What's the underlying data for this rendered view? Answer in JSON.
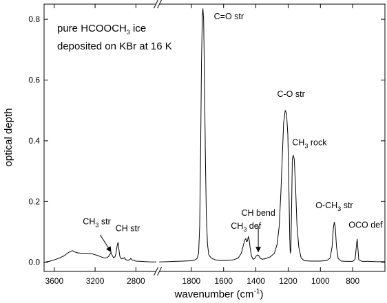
{
  "chart_data": {
    "type": "line",
    "title": "",
    "xlabel": "wavenumber (cm",
    "xlabel_sup": "-1",
    "xlabel_close": ")",
    "ylabel": "optical depth",
    "x_reversed": true,
    "x_axis_break": true,
    "x_segments": [
      {
        "xlim": [
          3700,
          2600
        ],
        "ticks": [
          3600,
          3200,
          2800
        ]
      },
      {
        "xlim": [
          2000,
          600
        ],
        "ticks": [
          1800,
          1600,
          1400,
          1200,
          1000,
          800
        ]
      }
    ],
    "ylim": [
      -0.03,
      0.85
    ],
    "y_ticks": [
      0.0,
      0.2,
      0.4,
      0.6,
      0.8
    ],
    "y_tick_labels": [
      "0.0",
      "0.2",
      "0.4",
      "0.6",
      "0.8"
    ],
    "legend_lines": [
      {
        "parts": [
          {
            "t": "pure HCOOCH"
          },
          {
            "t": "3",
            "sub": true
          },
          {
            "t": " ice"
          }
        ]
      },
      {
        "parts": [
          {
            "t": "deposited on KBr at 16 K"
          }
        ]
      }
    ],
    "series": [
      {
        "points": [
          [
            3700,
            0.0
          ],
          [
            3650,
            0.003
          ],
          [
            3600,
            0.008
          ],
          [
            3550,
            0.014
          ],
          [
            3500,
            0.022
          ],
          [
            3470,
            0.03
          ],
          [
            3440,
            0.036
          ],
          [
            3420,
            0.038
          ],
          [
            3400,
            0.034
          ],
          [
            3370,
            0.031
          ],
          [
            3340,
            0.03
          ],
          [
            3300,
            0.03
          ],
          [
            3260,
            0.029
          ],
          [
            3220,
            0.027
          ],
          [
            3180,
            0.023
          ],
          [
            3150,
            0.019
          ],
          [
            3120,
            0.015
          ],
          [
            3100,
            0.014
          ],
          [
            3080,
            0.016
          ],
          [
            3060,
            0.022
          ],
          [
            3045,
            0.033
          ],
          [
            3035,
            0.025
          ],
          [
            3020,
            0.015
          ],
          [
            3005,
            0.018
          ],
          [
            2995,
            0.03
          ],
          [
            2985,
            0.052
          ],
          [
            2975,
            0.066
          ],
          [
            2968,
            0.045
          ],
          [
            2958,
            0.02
          ],
          [
            2945,
            0.012
          ],
          [
            2925,
            0.012
          ],
          [
            2910,
            0.016
          ],
          [
            2905,
            0.01
          ],
          [
            2880,
            0.006
          ],
          [
            2860,
            0.009
          ],
          [
            2850,
            0.013
          ],
          [
            2840,
            0.008
          ],
          [
            2800,
            0.004
          ],
          [
            2750,
            0.003
          ],
          [
            2700,
            0.002
          ],
          [
            2650,
            0.001
          ],
          [
            2600,
            0.001
          ]
        ],
        "points_b": [
          [
            2000,
            0.001
          ],
          [
            1950,
            0.002
          ],
          [
            1900,
            0.003
          ],
          [
            1850,
            0.004
          ],
          [
            1800,
            0.005
          ],
          [
            1780,
            0.007
          ],
          [
            1765,
            0.012
          ],
          [
            1755,
            0.03
          ],
          [
            1748,
            0.12
          ],
          [
            1742,
            0.38
          ],
          [
            1737,
            0.66
          ],
          [
            1732,
            0.81
          ],
          [
            1728,
            0.835
          ],
          [
            1724,
            0.8
          ],
          [
            1719,
            0.63
          ],
          [
            1713,
            0.36
          ],
          [
            1707,
            0.16
          ],
          [
            1700,
            0.06
          ],
          [
            1692,
            0.025
          ],
          [
            1683,
            0.018
          ],
          [
            1670,
            0.012
          ],
          [
            1650,
            0.008
          ],
          [
            1620,
            0.006
          ],
          [
            1580,
            0.006
          ],
          [
            1540,
            0.008
          ],
          [
            1510,
            0.014
          ],
          [
            1490,
            0.03
          ],
          [
            1478,
            0.055
          ],
          [
            1470,
            0.072
          ],
          [
            1463,
            0.078
          ],
          [
            1457,
            0.068
          ],
          [
            1452,
            0.07
          ],
          [
            1447,
            0.085
          ],
          [
            1442,
            0.078
          ],
          [
            1436,
            0.05
          ],
          [
            1428,
            0.022
          ],
          [
            1418,
            0.01
          ],
          [
            1408,
            0.012
          ],
          [
            1398,
            0.02
          ],
          [
            1390,
            0.024
          ],
          [
            1382,
            0.022
          ],
          [
            1374,
            0.014
          ],
          [
            1362,
            0.01
          ],
          [
            1340,
            0.012
          ],
          [
            1310,
            0.018
          ],
          [
            1285,
            0.03
          ],
          [
            1268,
            0.06
          ],
          [
            1255,
            0.12
          ],
          [
            1245,
            0.23
          ],
          [
            1237,
            0.34
          ],
          [
            1228,
            0.46
          ],
          [
            1218,
            0.5
          ],
          [
            1210,
            0.49
          ],
          [
            1202,
            0.42
          ],
          [
            1196,
            0.26
          ],
          [
            1190,
            0.08
          ],
          [
            1187,
            0.03
          ],
          [
            1183,
            0.04
          ],
          [
            1178,
            0.2
          ],
          [
            1174,
            0.34
          ],
          [
            1168,
            0.352
          ],
          [
            1162,
            0.34
          ],
          [
            1154,
            0.25
          ],
          [
            1145,
            0.12
          ],
          [
            1134,
            0.05
          ],
          [
            1120,
            0.015
          ],
          [
            1100,
            0.005
          ],
          [
            1060,
            0.004
          ],
          [
            1000,
            0.004
          ],
          [
            960,
            0.006
          ],
          [
            940,
            0.014
          ],
          [
            928,
            0.05
          ],
          [
            920,
            0.11
          ],
          [
            914,
            0.132
          ],
          [
            908,
            0.118
          ],
          [
            900,
            0.05
          ],
          [
            890,
            0.012
          ],
          [
            870,
            0.004
          ],
          [
            840,
            0.003
          ],
          [
            800,
            0.003
          ],
          [
            785,
            0.01
          ],
          [
            776,
            0.06
          ],
          [
            772,
            0.076
          ],
          [
            768,
            0.05
          ],
          [
            762,
            0.008
          ],
          [
            740,
            0.003
          ],
          [
            700,
            0.003
          ],
          [
            650,
            0.002
          ],
          [
            600,
            0.002
          ]
        ]
      }
    ],
    "annotations": [
      {
        "parts": [
          {
            "t": "C=O str"
          }
        ],
        "x": 1660,
        "y": 0.8,
        "seg": 1
      },
      {
        "parts": [
          {
            "t": "C-O str"
          }
        ],
        "x": 1268,
        "y": 0.545,
        "seg": 1
      },
      {
        "parts": [
          {
            "t": "CH"
          },
          {
            "t": "3",
            "sub": true
          },
          {
            "t": " rock"
          }
        ],
        "x": 1175,
        "y": 0.385,
        "seg": 1
      },
      {
        "parts": [
          {
            "t": "O-CH"
          },
          {
            "t": "3",
            "sub": true
          },
          {
            "t": " str"
          }
        ],
        "x": 1030,
        "y": 0.178,
        "seg": 1
      },
      {
        "parts": [
          {
            "t": "OCO def"
          }
        ],
        "x": 825,
        "y": 0.114,
        "seg": 1
      },
      {
        "parts": [
          {
            "t": "CH bend"
          }
        ],
        "x": 1490,
        "y": 0.153,
        "seg": 1
      },
      {
        "parts": [
          {
            "t": "CH"
          },
          {
            "t": "3",
            "sub": true
          },
          {
            "t": " def"
          }
        ],
        "x": 1555,
        "y": 0.11,
        "seg": 1
      },
      {
        "parts": [
          {
            "t": "CH"
          },
          {
            "t": "3",
            "sub": true
          },
          {
            "t": " str"
          }
        ],
        "x": 3320,
        "y": 0.125,
        "seg": 0
      },
      {
        "parts": [
          {
            "t": "CH str"
          }
        ],
        "x": 3000,
        "y": 0.102,
        "seg": 0
      }
    ],
    "arrows": [
      {
        "from": [
          3150,
          0.09
        ],
        "to": [
          3045,
          0.035
        ],
        "seg": 0
      },
      {
        "from": [
          1385,
          0.12
        ],
        "to": [
          1385,
          0.035
        ],
        "seg": 1
      }
    ]
  }
}
